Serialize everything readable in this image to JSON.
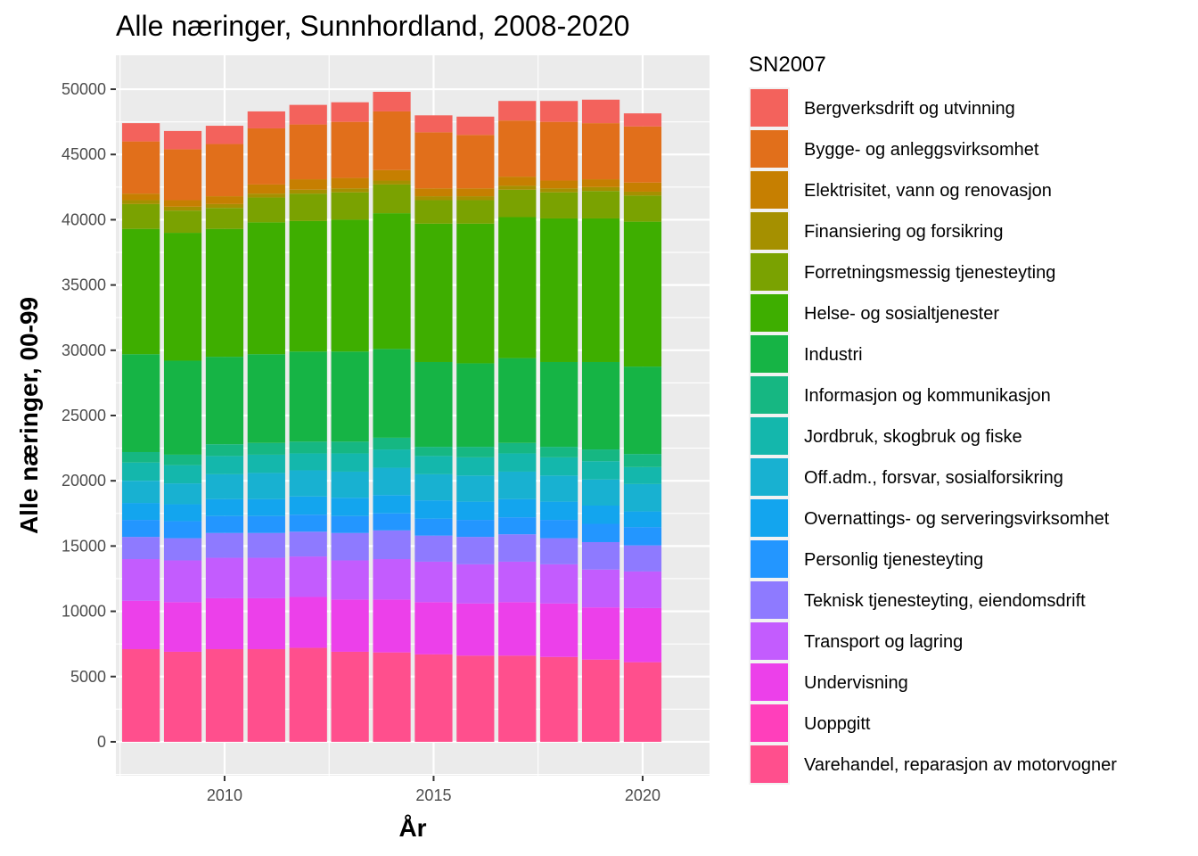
{
  "chart_data": {
    "type": "bar",
    "stacked": true,
    "title": "Alle næringer, Sunnhordland, 2008-2020",
    "xlabel": "År",
    "ylabel": "Alle næringer, 00-99",
    "legend_title": "SN2007",
    "legend_position": "right",
    "grid": true,
    "x": [
      2008,
      2009,
      2010,
      2011,
      2012,
      2013,
      2014,
      2015,
      2016,
      2017,
      2018,
      2019,
      2020
    ],
    "x_ticks": [
      "2010",
      "2015",
      "2020"
    ],
    "xlim": [
      2007.4,
      2021.6
    ],
    "y_ticks": [
      "0",
      "5000",
      "10000",
      "15000",
      "20000",
      "25000",
      "30000",
      "35000",
      "40000",
      "45000",
      "50000"
    ],
    "ylim": [
      -2600,
      52600
    ],
    "series": [
      {
        "name": "Varehandel, reparasjon av motorvogner",
        "color": "#FF4F8D",
        "values": [
          7100,
          6900,
          7100,
          7100,
          7200,
          6900,
          6850,
          6700,
          6600,
          6600,
          6500,
          6300,
          6100
        ]
      },
      {
        "name": "Uoppgitt",
        "color": "#FF3FBB",
        "values": [
          0,
          0,
          0,
          0,
          0,
          0,
          0,
          0,
          0,
          0,
          0,
          0,
          0
        ]
      },
      {
        "name": "Undervisning",
        "color": "#EC40EA",
        "values": [
          3700,
          3800,
          3900,
          3900,
          3900,
          4000,
          4050,
          4000,
          4000,
          4100,
          4100,
          4000,
          4150
        ]
      },
      {
        "name": "Transport og lagring",
        "color": "#C35CFE",
        "values": [
          3200,
          3200,
          3100,
          3100,
          3100,
          3000,
          3100,
          3100,
          3000,
          3100,
          3000,
          2900,
          2800
        ]
      },
      {
        "name": "Teknisk tjenesteyting, eiendomsdrift",
        "color": "#8E7AFF",
        "values": [
          1700,
          1700,
          1900,
          1900,
          1900,
          2100,
          2200,
          2000,
          2100,
          2100,
          2000,
          2100,
          2000
        ]
      },
      {
        "name": "Personlig tjenesteyting",
        "color": "#2396FF",
        "values": [
          1300,
          1300,
          1300,
          1300,
          1300,
          1300,
          1300,
          1300,
          1300,
          1300,
          1400,
          1400,
          1400
        ]
      },
      {
        "name": "Overnattings- og serveringsvirksomhet",
        "color": "#13A5EE",
        "values": [
          1300,
          1300,
          1300,
          1300,
          1400,
          1400,
          1400,
          1400,
          1400,
          1400,
          1400,
          1400,
          1200
        ]
      },
      {
        "name": "Off.adm., forsvar, sosialforsikring",
        "color": "#18B1D1",
        "values": [
          1700,
          1600,
          1900,
          2000,
          2000,
          2000,
          2100,
          2000,
          2000,
          2100,
          2000,
          2000,
          2100
        ]
      },
      {
        "name": "Jordbruk, skogbruk og fiske",
        "color": "#14B7AC",
        "values": [
          1400,
          1400,
          1400,
          1400,
          1300,
          1400,
          1400,
          1400,
          1400,
          1400,
          1400,
          1400,
          1300
        ]
      },
      {
        "name": "Informasjon og kommunikasjon",
        "color": "#16B782",
        "values": [
          800,
          800,
          900,
          900,
          900,
          900,
          900,
          700,
          800,
          800,
          800,
          900,
          1000
        ]
      },
      {
        "name": "Industri",
        "color": "#16B445",
        "values": [
          7500,
          7200,
          6700,
          6800,
          6900,
          6900,
          6800,
          6500,
          6400,
          6500,
          6500,
          6700,
          6700
        ]
      },
      {
        "name": "Helse- og sosialtjenester",
        "color": "#3EAE00",
        "values": [
          9600,
          9800,
          9800,
          10100,
          10000,
          10100,
          10400,
          10600,
          10700,
          10800,
          11000,
          11000,
          11100
        ]
      },
      {
        "name": "Forretningsmessig tjenesteyting",
        "color": "#7AA201",
        "values": [
          1900,
          1700,
          1600,
          1900,
          2100,
          2100,
          2200,
          1800,
          1800,
          2100,
          2000,
          2100,
          2000
        ]
      },
      {
        "name": "Finansiering og forsikring",
        "color": "#A59000",
        "values": [
          300,
          300,
          300,
          300,
          300,
          300,
          300,
          300,
          300,
          300,
          300,
          300,
          300
        ]
      },
      {
        "name": "Elektrisitet, vann og renovasjon",
        "color": "#C67F01",
        "values": [
          500,
          500,
          600,
          700,
          800,
          800,
          800,
          600,
          600,
          700,
          600,
          600,
          700
        ]
      },
      {
        "name": "Bygge- og anleggsvirksomhet",
        "color": "#E16F1B",
        "values": [
          4000,
          3900,
          4000,
          4300,
          4200,
          4300,
          4500,
          4300,
          4100,
          4300,
          4500,
          4300,
          4300
        ]
      },
      {
        "name": "Bergverksdrift og utvinning",
        "color": "#F3625C",
        "values": [
          1400,
          1400,
          1400,
          1300,
          1500,
          1500,
          1500,
          1300,
          1400,
          1500,
          1600,
          1800,
          1000
        ]
      }
    ]
  }
}
